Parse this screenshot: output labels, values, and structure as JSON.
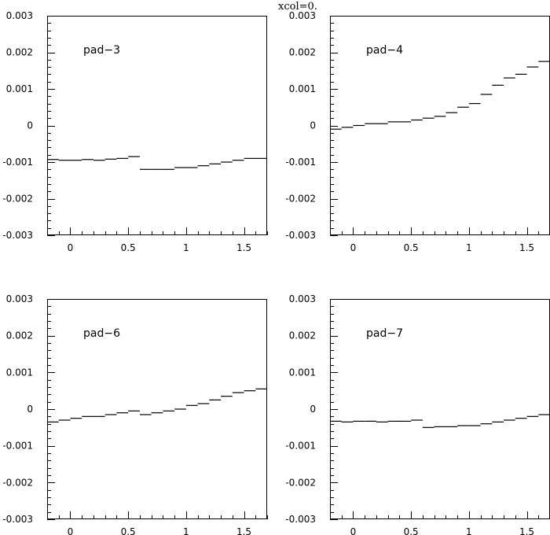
{
  "figure_title": "xcol=0.",
  "chart_data": [
    {
      "type": "line",
      "title": "pad−3",
      "xlim": [
        -0.2,
        1.7
      ],
      "ylim": [
        -0.003,
        0.003
      ],
      "x_ticks": [
        "0",
        "0.5",
        "1",
        "1.5"
      ],
      "y_ticks": [
        "0.003",
        "0.002",
        "0.001",
        "0",
        "-0.001",
        "-0.002",
        "-0.003"
      ],
      "bin_width": 0.1,
      "series": [
        {
          "x": [
            -0.2,
            -0.1,
            0.0,
            0.1,
            0.2,
            0.3,
            0.4,
            0.5,
            0.6,
            0.7,
            0.8,
            0.9,
            1.0,
            1.1,
            1.2,
            1.3,
            1.4,
            1.5,
            1.6
          ],
          "values": [
            -0.00093,
            -0.00095,
            -0.00095,
            -0.00093,
            -0.00095,
            -0.00092,
            -0.0009,
            -0.00085,
            -0.0012,
            -0.0012,
            -0.0012,
            -0.00115,
            -0.00115,
            -0.0011,
            -0.00105,
            -0.001,
            -0.00095,
            -0.0009,
            -0.0009
          ]
        }
      ]
    },
    {
      "type": "line",
      "title": "pad−4",
      "xlim": [
        -0.2,
        1.7
      ],
      "ylim": [
        -0.003,
        0.003
      ],
      "x_ticks": [
        "0",
        "0.5",
        "1",
        "1.5"
      ],
      "y_ticks": [
        "0.003",
        "0.002",
        "0.001",
        "0",
        "-0.001",
        "-0.002",
        "-0.003"
      ],
      "bin_width": 0.1,
      "series": [
        {
          "x": [
            -0.2,
            -0.1,
            0.0,
            0.1,
            0.2,
            0.3,
            0.4,
            0.5,
            0.6,
            0.7,
            0.8,
            0.9,
            1.0,
            1.1,
            1.2,
            1.3,
            1.4,
            1.5,
            1.6
          ],
          "values": [
            -0.0001,
            -5e-05,
            0.0,
            5e-05,
            5e-05,
            0.0001,
            0.0001,
            0.00015,
            0.0002,
            0.00025,
            0.00035,
            0.0005,
            0.0006,
            0.00085,
            0.0011,
            0.0013,
            0.0014,
            0.0016,
            0.00175
          ]
        }
      ]
    },
    {
      "type": "line",
      "title": "pad−6",
      "xlim": [
        -0.2,
        1.7
      ],
      "ylim": [
        -0.003,
        0.003
      ],
      "x_ticks": [
        "0",
        "0.5",
        "1",
        "1.5"
      ],
      "y_ticks": [
        "0.003",
        "0.002",
        "0.001",
        "0",
        "-0.001",
        "-0.002",
        "-0.003"
      ],
      "bin_width": 0.1,
      "series": [
        {
          "x": [
            -0.2,
            -0.1,
            0.0,
            0.1,
            0.2,
            0.3,
            0.4,
            0.5,
            0.6,
            0.7,
            0.8,
            0.9,
            1.0,
            1.1,
            1.2,
            1.3,
            1.4,
            1.5,
            1.6
          ],
          "values": [
            -0.00035,
            -0.0003,
            -0.00025,
            -0.0002,
            -0.0002,
            -0.00015,
            -0.0001,
            -5e-05,
            -0.00015,
            -0.0001,
            -5e-05,
            0.0,
            0.0001,
            0.00015,
            0.00025,
            0.00035,
            0.00045,
            0.0005,
            0.00055
          ]
        }
      ]
    },
    {
      "type": "line",
      "title": "pad−7",
      "xlim": [
        -0.2,
        1.7
      ],
      "ylim": [
        -0.003,
        0.003
      ],
      "x_ticks": [
        "0",
        "0.5",
        "1",
        "1.5"
      ],
      "y_ticks": [
        "0.003",
        "0.002",
        "0.001",
        "0",
        "-0.001",
        "-0.002",
        "-0.003"
      ],
      "bin_width": 0.1,
      "series": [
        {
          "x": [
            -0.2,
            -0.1,
            0.0,
            0.1,
            0.2,
            0.3,
            0.4,
            0.5,
            0.6,
            0.7,
            0.8,
            0.9,
            1.0,
            1.1,
            1.2,
            1.3,
            1.4,
            1.5,
            1.6
          ],
          "values": [
            -0.00033,
            -0.00035,
            -0.00033,
            -0.00033,
            -0.00035,
            -0.00033,
            -0.00033,
            -0.0003,
            -0.0005,
            -0.00048,
            -0.00048,
            -0.00045,
            -0.00045,
            -0.0004,
            -0.00035,
            -0.0003,
            -0.00025,
            -0.0002,
            -0.00015
          ]
        }
      ]
    }
  ]
}
